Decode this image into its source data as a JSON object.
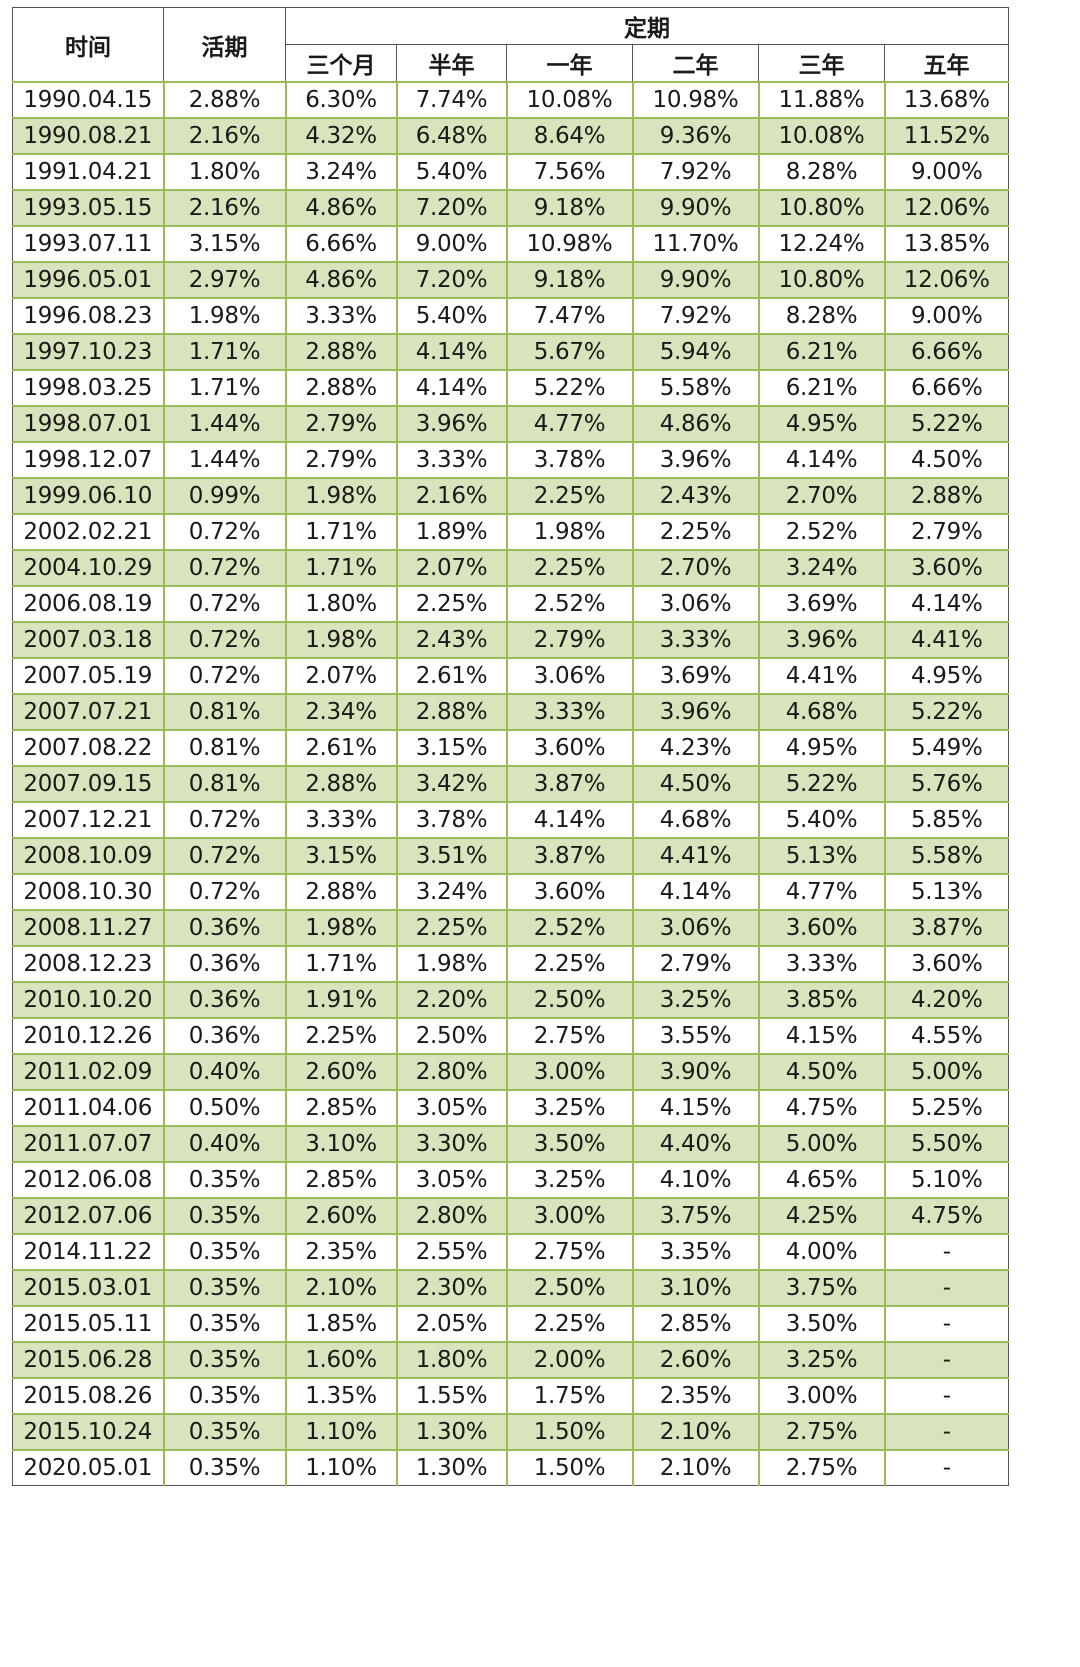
{
  "title_partial": "",
  "header": {
    "time": "时间",
    "demand": "活期",
    "fixed_group": "定期",
    "fixed_terms": [
      "三个月",
      "半年",
      "一年",
      "二年",
      "三年",
      "五年"
    ]
  },
  "colors": {
    "row_alt_bg": "#d8e4bc",
    "grid_green": "#9bbb59",
    "outer_border": "#555555"
  },
  "rows": [
    [
      "1990.04.15",
      "2.88%",
      "6.30%",
      "7.74%",
      "10.08%",
      "10.98%",
      "11.88%",
      "13.68%"
    ],
    [
      "1990.08.21",
      "2.16%",
      "4.32%",
      "6.48%",
      "8.64%",
      "9.36%",
      "10.08%",
      "11.52%"
    ],
    [
      "1991.04.21",
      "1.80%",
      "3.24%",
      "5.40%",
      "7.56%",
      "7.92%",
      "8.28%",
      "9.00%"
    ],
    [
      "1993.05.15",
      "2.16%",
      "4.86%",
      "7.20%",
      "9.18%",
      "9.90%",
      "10.80%",
      "12.06%"
    ],
    [
      "1993.07.11",
      "3.15%",
      "6.66%",
      "9.00%",
      "10.98%",
      "11.70%",
      "12.24%",
      "13.85%"
    ],
    [
      "1996.05.01",
      "2.97%",
      "4.86%",
      "7.20%",
      "9.18%",
      "9.90%",
      "10.80%",
      "12.06%"
    ],
    [
      "1996.08.23",
      "1.98%",
      "3.33%",
      "5.40%",
      "7.47%",
      "7.92%",
      "8.28%",
      "9.00%"
    ],
    [
      "1997.10.23",
      "1.71%",
      "2.88%",
      "4.14%",
      "5.67%",
      "5.94%",
      "6.21%",
      "6.66%"
    ],
    [
      "1998.03.25",
      "1.71%",
      "2.88%",
      "4.14%",
      "5.22%",
      "5.58%",
      "6.21%",
      "6.66%"
    ],
    [
      "1998.07.01",
      "1.44%",
      "2.79%",
      "3.96%",
      "4.77%",
      "4.86%",
      "4.95%",
      "5.22%"
    ],
    [
      "1998.12.07",
      "1.44%",
      "2.79%",
      "3.33%",
      "3.78%",
      "3.96%",
      "4.14%",
      "4.50%"
    ],
    [
      "1999.06.10",
      "0.99%",
      "1.98%",
      "2.16%",
      "2.25%",
      "2.43%",
      "2.70%",
      "2.88%"
    ],
    [
      "2002.02.21",
      "0.72%",
      "1.71%",
      "1.89%",
      "1.98%",
      "2.25%",
      "2.52%",
      "2.79%"
    ],
    [
      "2004.10.29",
      "0.72%",
      "1.71%",
      "2.07%",
      "2.25%",
      "2.70%",
      "3.24%",
      "3.60%"
    ],
    [
      "2006.08.19",
      "0.72%",
      "1.80%",
      "2.25%",
      "2.52%",
      "3.06%",
      "3.69%",
      "4.14%"
    ],
    [
      "2007.03.18",
      "0.72%",
      "1.98%",
      "2.43%",
      "2.79%",
      "3.33%",
      "3.96%",
      "4.41%"
    ],
    [
      "2007.05.19",
      "0.72%",
      "2.07%",
      "2.61%",
      "3.06%",
      "3.69%",
      "4.41%",
      "4.95%"
    ],
    [
      "2007.07.21",
      "0.81%",
      "2.34%",
      "2.88%",
      "3.33%",
      "3.96%",
      "4.68%",
      "5.22%"
    ],
    [
      "2007.08.22",
      "0.81%",
      "2.61%",
      "3.15%",
      "3.60%",
      "4.23%",
      "4.95%",
      "5.49%"
    ],
    [
      "2007.09.15",
      "0.81%",
      "2.88%",
      "3.42%",
      "3.87%",
      "4.50%",
      "5.22%",
      "5.76%"
    ],
    [
      "2007.12.21",
      "0.72%",
      "3.33%",
      "3.78%",
      "4.14%",
      "4.68%",
      "5.40%",
      "5.85%"
    ],
    [
      "2008.10.09",
      "0.72%",
      "3.15%",
      "3.51%",
      "3.87%",
      "4.41%",
      "5.13%",
      "5.58%"
    ],
    [
      "2008.10.30",
      "0.72%",
      "2.88%",
      "3.24%",
      "3.60%",
      "4.14%",
      "4.77%",
      "5.13%"
    ],
    [
      "2008.11.27",
      "0.36%",
      "1.98%",
      "2.25%",
      "2.52%",
      "3.06%",
      "3.60%",
      "3.87%"
    ],
    [
      "2008.12.23",
      "0.36%",
      "1.71%",
      "1.98%",
      "2.25%",
      "2.79%",
      "3.33%",
      "3.60%"
    ],
    [
      "2010.10.20",
      "0.36%",
      "1.91%",
      "2.20%",
      "2.50%",
      "3.25%",
      "3.85%",
      "4.20%"
    ],
    [
      "2010.12.26",
      "0.36%",
      "2.25%",
      "2.50%",
      "2.75%",
      "3.55%",
      "4.15%",
      "4.55%"
    ],
    [
      "2011.02.09",
      "0.40%",
      "2.60%",
      "2.80%",
      "3.00%",
      "3.90%",
      "4.50%",
      "5.00%"
    ],
    [
      "2011.04.06",
      "0.50%",
      "2.85%",
      "3.05%",
      "3.25%",
      "4.15%",
      "4.75%",
      "5.25%"
    ],
    [
      "2011.07.07",
      "0.40%",
      "3.10%",
      "3.30%",
      "3.50%",
      "4.40%",
      "5.00%",
      "5.50%"
    ],
    [
      "2012.06.08",
      "0.35%",
      "2.85%",
      "3.05%",
      "3.25%",
      "4.10%",
      "4.65%",
      "5.10%"
    ],
    [
      "2012.07.06",
      "0.35%",
      "2.60%",
      "2.80%",
      "3.00%",
      "3.75%",
      "4.25%",
      "4.75%"
    ],
    [
      "2014.11.22",
      "0.35%",
      "2.35%",
      "2.55%",
      "2.75%",
      "3.35%",
      "4.00%",
      "-"
    ],
    [
      "2015.03.01",
      "0.35%",
      "2.10%",
      "2.30%",
      "2.50%",
      "3.10%",
      "3.75%",
      "-"
    ],
    [
      "2015.05.11",
      "0.35%",
      "1.85%",
      "2.05%",
      "2.25%",
      "2.85%",
      "3.50%",
      "-"
    ],
    [
      "2015.06.28",
      "0.35%",
      "1.60%",
      "1.80%",
      "2.00%",
      "2.60%",
      "3.25%",
      "-"
    ],
    [
      "2015.08.26",
      "0.35%",
      "1.35%",
      "1.55%",
      "1.75%",
      "2.35%",
      "3.00%",
      "-"
    ],
    [
      "2015.10.24",
      "0.35%",
      "1.10%",
      "1.30%",
      "1.50%",
      "2.10%",
      "2.75%",
      "-"
    ],
    [
      "2020.05.01",
      "0.35%",
      "1.10%",
      "1.30%",
      "1.50%",
      "2.10%",
      "2.75%",
      "-"
    ]
  ]
}
